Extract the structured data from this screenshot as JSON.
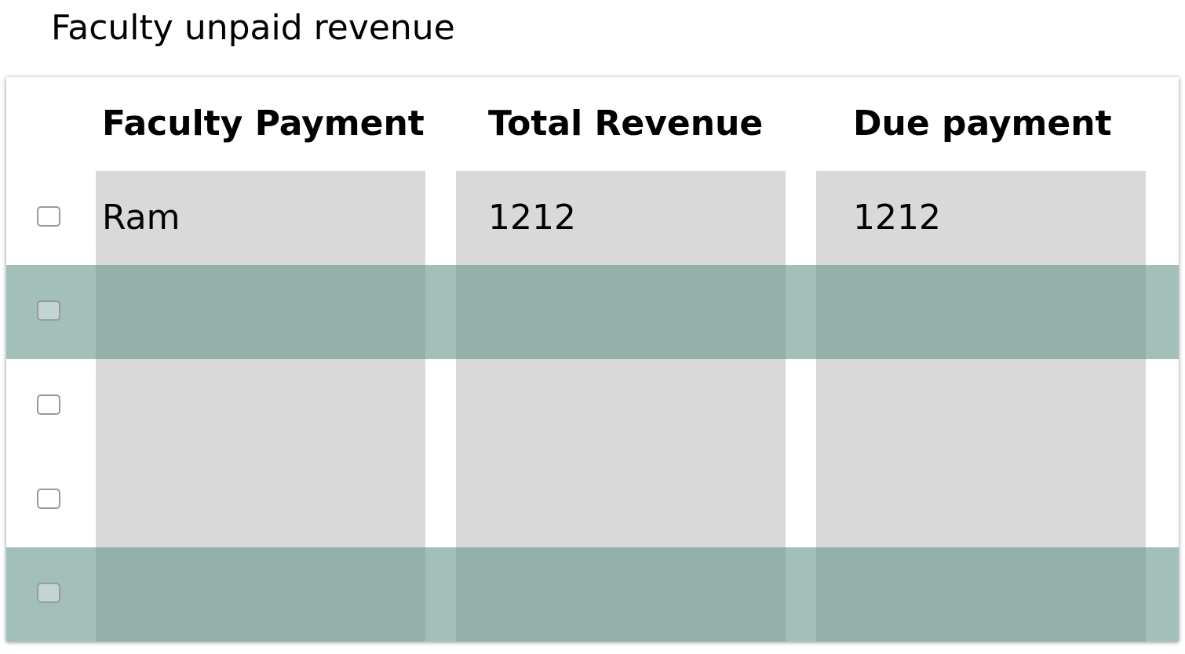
{
  "page": {
    "title": "Faculty unpaid revenue"
  },
  "table": {
    "columns": [
      "Faculty Payment",
      "Total Revenue",
      "Due payment"
    ],
    "rows": [
      {
        "faculty_payment": "Ram",
        "total_revenue": "1212",
        "due_payment": "1212",
        "checked": false
      },
      {
        "faculty_payment": "",
        "total_revenue": "",
        "due_payment": "",
        "checked": false
      },
      {
        "faculty_payment": "",
        "total_revenue": "",
        "due_payment": "",
        "checked": false
      },
      {
        "faculty_payment": "",
        "total_revenue": "",
        "due_payment": "",
        "checked": false
      },
      {
        "faculty_payment": "",
        "total_revenue": "",
        "due_payment": "",
        "checked": false
      }
    ]
  },
  "colors": {
    "column_fill": "#d9d9d9",
    "highlight_band": "#8fa8a2",
    "checkbox_border": "#9a9a9a"
  }
}
